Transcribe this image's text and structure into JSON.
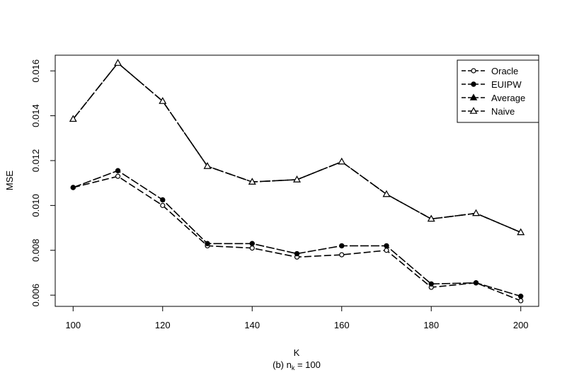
{
  "chart_data": {
    "type": "line",
    "xlabel": "K",
    "ylabel": "MSE",
    "caption_prefix": "(b) n",
    "caption_sub": "k",
    "caption_suffix": " = 100",
    "x": [
      100,
      110,
      120,
      130,
      140,
      150,
      160,
      170,
      180,
      190,
      200
    ],
    "xticks": [
      100,
      120,
      140,
      160,
      180,
      200
    ],
    "yticks": [
      0.006,
      0.008,
      0.01,
      0.012,
      0.014,
      0.016
    ],
    "ytick_labels": [
      "0.006",
      "0.008",
      "0.010",
      "0.012",
      "0.014",
      "0.016"
    ],
    "xlim": [
      96,
      204
    ],
    "ylim": [
      0.0055,
      0.0167
    ],
    "legend_position": "top-right",
    "series": [
      {
        "name": "Oracle",
        "marker": "open-circle",
        "line": "dashed",
        "values": [
          0.0108,
          0.0113,
          0.01,
          0.0082,
          0.0081,
          0.0077,
          0.0078,
          0.008,
          0.00635,
          0.00655,
          0.00575
        ]
      },
      {
        "name": "EUIPW",
        "marker": "filled-circle",
        "line": "dashed",
        "values": [
          0.0108,
          0.01155,
          0.01025,
          0.0083,
          0.0083,
          0.00785,
          0.0082,
          0.0082,
          0.0065,
          0.00655,
          0.00595
        ]
      },
      {
        "name": "Average",
        "marker": "filled-triangle",
        "line": "dashed",
        "values": [
          0.01385,
          0.01635,
          0.01465,
          0.01175,
          0.01105,
          0.01115,
          0.01195,
          0.0105,
          0.0094,
          0.00965,
          0.0088
        ]
      },
      {
        "name": "Naive",
        "marker": "open-triangle",
        "line": "dashed",
        "values": [
          0.01385,
          0.01635,
          0.01465,
          0.01175,
          0.01105,
          0.01115,
          0.01195,
          0.0105,
          0.0094,
          0.00965,
          0.0088
        ]
      }
    ]
  }
}
